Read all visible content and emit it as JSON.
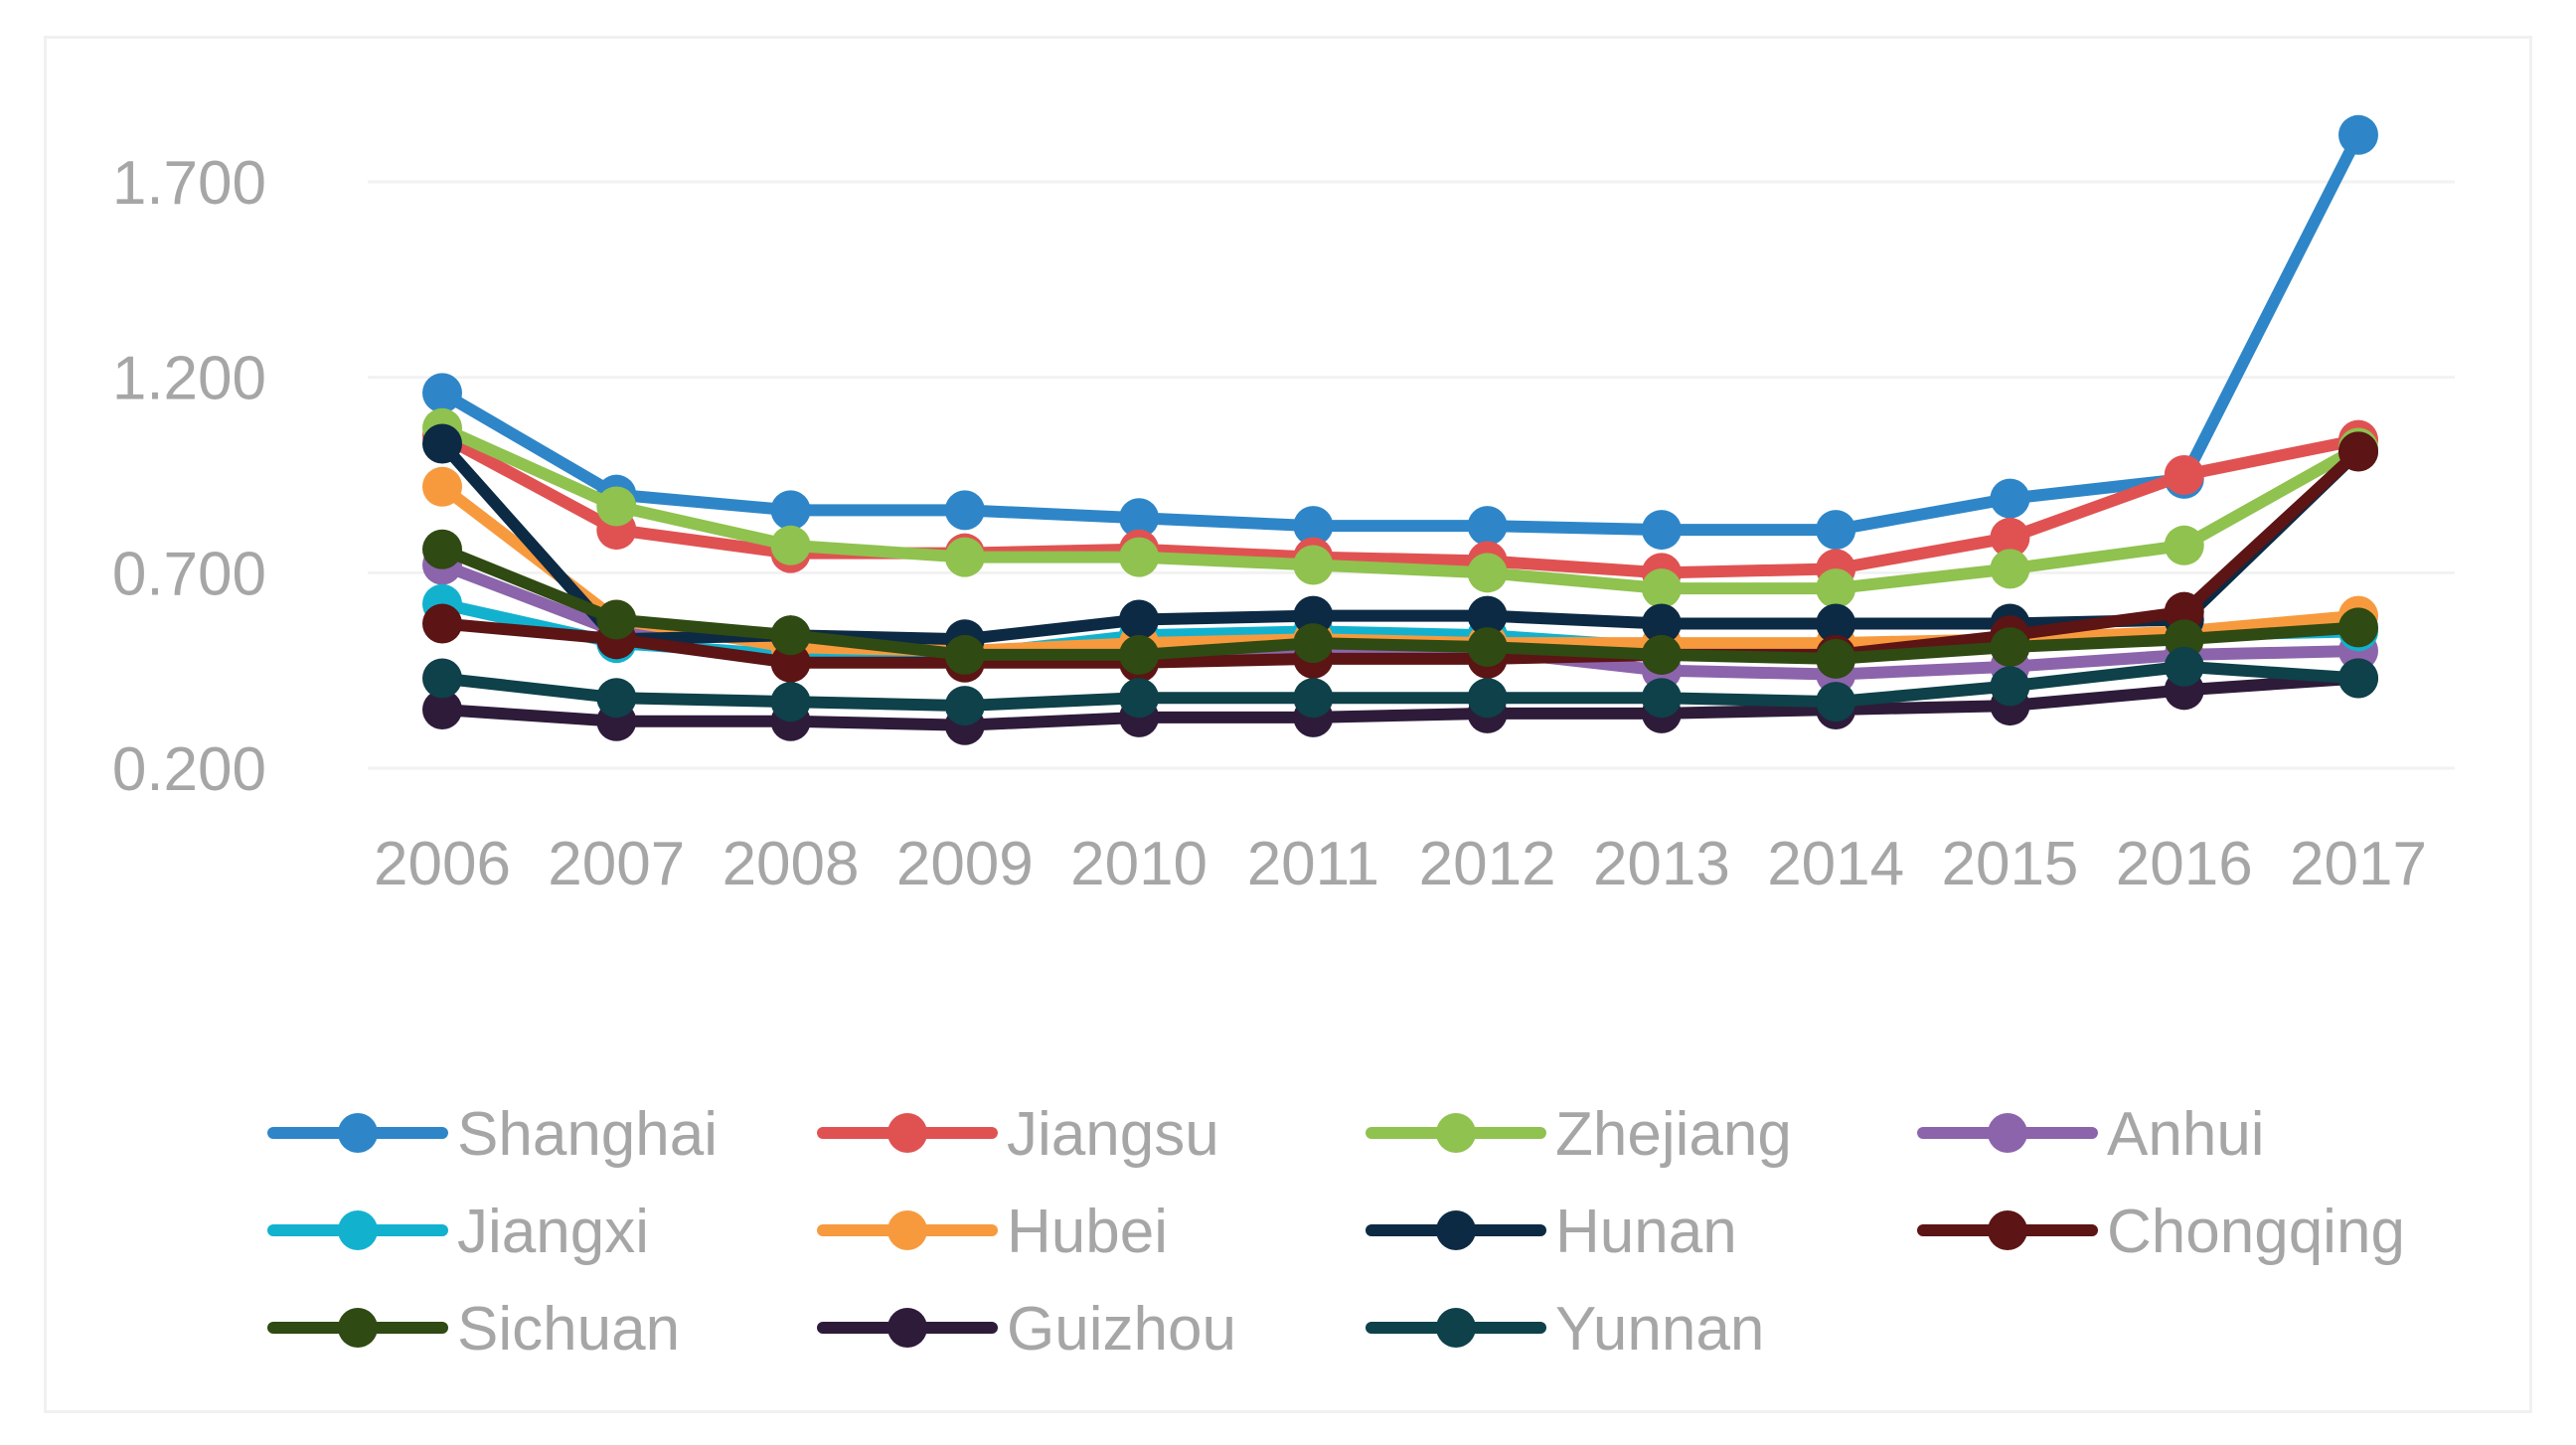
{
  "chart_data": {
    "type": "line",
    "title": "",
    "xlabel": "",
    "ylabel": "",
    "x": [
      "2006",
      "2007",
      "2008",
      "2009",
      "2010",
      "2011",
      "2012",
      "2013",
      "2014",
      "2015",
      "2016",
      "2017"
    ],
    "y_ticks": [
      "0.200",
      "0.700",
      "1.200",
      "1.700"
    ],
    "ylim": [
      0.2,
      1.95
    ],
    "grid": "horizontal",
    "legend": "bottom",
    "series": [
      {
        "name": "Shanghai",
        "color": "#2e86c8",
        "values": [
          1.16,
          0.9,
          0.86,
          0.86,
          0.84,
          0.82,
          0.82,
          0.81,
          0.81,
          0.89,
          0.94,
          1.82
        ]
      },
      {
        "name": "Jiangsu",
        "color": "#e05252",
        "values": [
          1.05,
          0.81,
          0.75,
          0.75,
          0.76,
          0.74,
          0.73,
          0.7,
          0.71,
          0.79,
          0.95,
          1.04
        ]
      },
      {
        "name": "Zhejiang",
        "color": "#8fc24f",
        "values": [
          1.07,
          0.87,
          0.77,
          0.74,
          0.74,
          0.72,
          0.7,
          0.66,
          0.66,
          0.71,
          0.77,
          1.02
        ]
      },
      {
        "name": "Anhui",
        "color": "#8c64ab",
        "values": [
          0.72,
          0.55,
          0.53,
          0.48,
          0.5,
          0.51,
          0.5,
          0.45,
          0.44,
          0.46,
          0.49,
          0.5
        ]
      },
      {
        "name": "Jiangxi",
        "color": "#12b2cf",
        "values": [
          0.62,
          0.52,
          0.49,
          0.49,
          0.54,
          0.55,
          0.54,
          0.51,
          0.5,
          0.52,
          0.54,
          0.55
        ]
      },
      {
        "name": "Hubei",
        "color": "#f79a3e",
        "values": [
          0.92,
          0.58,
          0.51,
          0.5,
          0.52,
          0.53,
          0.52,
          0.52,
          0.52,
          0.53,
          0.55,
          0.59
        ]
      },
      {
        "name": "Hunan",
        "color": "#0c2a44",
        "values": [
          1.03,
          0.53,
          0.54,
          0.53,
          0.58,
          0.59,
          0.59,
          0.57,
          0.57,
          0.57,
          0.58,
          1.01
        ]
      },
      {
        "name": "Chongqing",
        "color": "#5c1414",
        "values": [
          0.57,
          0.53,
          0.47,
          0.47,
          0.47,
          0.48,
          0.48,
          0.49,
          0.49,
          0.54,
          0.6,
          1.01
        ]
      },
      {
        "name": "Sichuan",
        "color": "#2f4a12",
        "values": [
          0.76,
          0.58,
          0.54,
          0.49,
          0.49,
          0.52,
          0.51,
          0.49,
          0.48,
          0.51,
          0.53,
          0.56
        ]
      },
      {
        "name": "Guizhou",
        "color": "#2e1b3a",
        "values": [
          0.35,
          0.32,
          0.32,
          0.31,
          0.33,
          0.33,
          0.34,
          0.34,
          0.35,
          0.36,
          0.4,
          0.43
        ]
      },
      {
        "name": "Yunnan",
        "color": "#0e4149",
        "values": [
          0.43,
          0.38,
          0.37,
          0.36,
          0.38,
          0.38,
          0.38,
          0.38,
          0.37,
          0.41,
          0.46,
          0.43
        ]
      }
    ]
  }
}
